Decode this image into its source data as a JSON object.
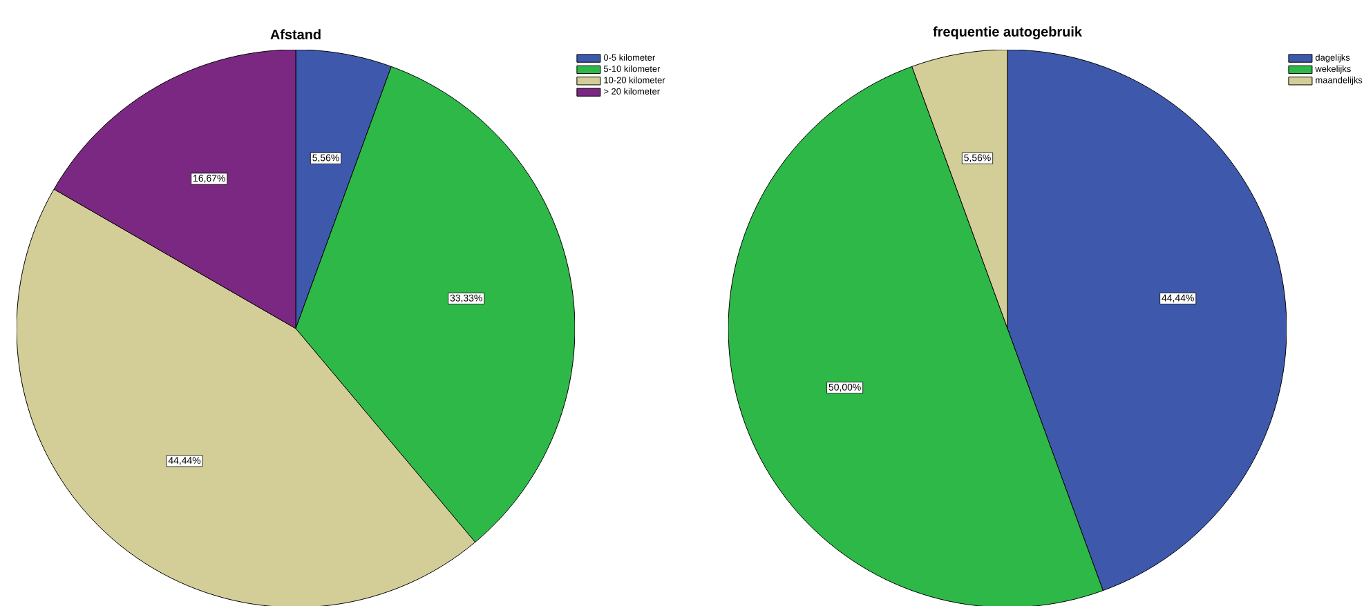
{
  "chart_data": [
    {
      "type": "pie",
      "title": "Afstand",
      "categories": [
        "0-5 kilometer",
        "5-10 kilometer",
        "10-20 kilometer",
        "> 20 kilometer"
      ],
      "values": [
        5.56,
        33.33,
        44.44,
        16.67
      ],
      "colors": [
        "#3e58ac",
        "#2eb848",
        "#d3ce97",
        "#7b2882"
      ],
      "value_labels": [
        "5,56%",
        "33,33%",
        "44,44%",
        "16,67%"
      ],
      "legend": "top right"
    },
    {
      "type": "pie",
      "title": "frequentie autogebruik",
      "categories": [
        "dagelijks",
        "wekelijks",
        "maandelijks"
      ],
      "values": [
        44.44,
        50.0,
        5.56
      ],
      "colors": [
        "#3e58ac",
        "#2eb848",
        "#d3ce97"
      ],
      "value_labels": [
        "44,44%",
        "50,00%",
        "5,56%"
      ],
      "legend": "top right"
    }
  ]
}
